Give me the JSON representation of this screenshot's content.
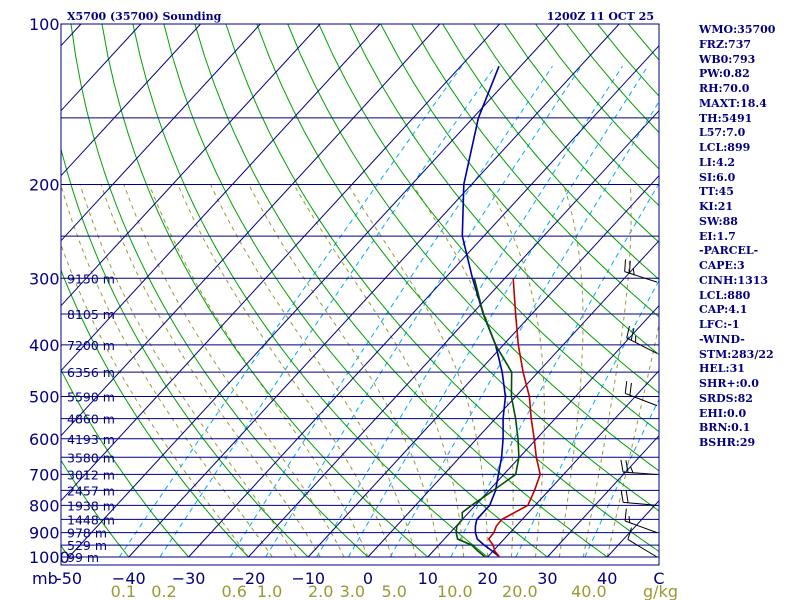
{
  "chart_data": {
    "type": "line",
    "chart_kind": "Skew-T log-P sounding",
    "title": "X5700 (35700) Sounding",
    "datetime": "1200Z 11 OCT 25",
    "pressure_unit_label": "mb",
    "mixing_ratio_unit_label": "g/kg",
    "pressure_axis": {
      "range": [
        1000,
        100
      ],
      "ticks": [
        100,
        200,
        300,
        400,
        500,
        600,
        700,
        800,
        900,
        1000
      ]
    },
    "temperature_axis": {
      "range": [
        -50,
        50
      ],
      "ticks": [
        -50,
        -40,
        -30,
        -20,
        -10,
        0,
        10,
        20,
        30,
        40,
        "C"
      ],
      "tick_labels": [
        "-50",
        "−40",
        "−30",
        "−20",
        "−10",
        "0",
        "10",
        "20",
        "30",
        "40",
        "C"
      ]
    },
    "mixing_ratio_labels": [
      "0.1",
      "0.2",
      "0.6",
      "1.0",
      "2.0",
      "3.0",
      "5.0",
      "10.0",
      "20.0",
      "40.0"
    ],
    "heights": [
      {
        "label": "9150 m",
        "p": 300
      },
      {
        "label": "8105 m",
        "p": 350
      },
      {
        "label": "7200 m",
        "p": 400
      },
      {
        "label": "6356 m",
        "p": 450
      },
      {
        "label": "5590 m",
        "p": 500
      },
      {
        "label": "4860 m",
        "p": 550
      },
      {
        "label": "4193 m",
        "p": 600
      },
      {
        "label": "3580 m",
        "p": 650
      },
      {
        "label": "3012 m",
        "p": 700
      },
      {
        "label": "2457 m",
        "p": 750
      },
      {
        "label": "1938 m",
        "p": 800
      },
      {
        "label": "1448 m",
        "p": 850
      },
      {
        "label": "978 m",
        "p": 900
      },
      {
        "label": "529 m",
        "p": 950
      },
      {
        "label": "99 m",
        "p": 1000
      }
    ],
    "series": [
      {
        "name": "temperature",
        "color": "#c00000",
        "points": [
          [
            1000,
            22
          ],
          [
            975,
            20.3
          ],
          [
            950,
            19.1
          ],
          [
            925,
            17.4
          ],
          [
            900,
            17.3
          ],
          [
            875,
            16.7
          ],
          [
            850,
            16.6
          ],
          [
            800,
            18.8
          ],
          [
            750,
            17.6
          ],
          [
            700,
            16.1
          ],
          [
            650,
            12.8
          ],
          [
            600,
            9.6
          ],
          [
            550,
            6.0
          ],
          [
            500,
            2.3
          ],
          [
            450,
            -2.5
          ],
          [
            400,
            -7.5
          ],
          [
            350,
            -12.7
          ],
          [
            300,
            -18.6
          ]
        ]
      },
      {
        "name": "dewpoint",
        "color": "#005000",
        "points": [
          [
            1000,
            19.6
          ],
          [
            975,
            17.5
          ],
          [
            950,
            15.5
          ],
          [
            925,
            12.2
          ],
          [
            900,
            11.0
          ],
          [
            875,
            10.1
          ],
          [
            850,
            10.0
          ],
          [
            825,
            8.9
          ],
          [
            800,
            9.4
          ],
          [
            750,
            10.7
          ],
          [
            700,
            12.0
          ],
          [
            650,
            9.9
          ],
          [
            600,
            6.9
          ],
          [
            550,
            3.4
          ],
          [
            500,
            -0.7
          ],
          [
            450,
            -4.4
          ],
          [
            400,
            -11.3
          ],
          [
            350,
            -18.1
          ],
          [
            300,
            -25.1
          ]
        ]
      },
      {
        "name": "parcel",
        "color": "#0000a0",
        "points": [
          [
            1000,
            22
          ],
          [
            975,
            19.9
          ],
          [
            950,
            17.6
          ],
          [
            925,
            15.5
          ],
          [
            900,
            14.2
          ],
          [
            875,
            13.2
          ],
          [
            850,
            12.4
          ],
          [
            800,
            12.4
          ],
          [
            750,
            11.1
          ],
          [
            700,
            9.1
          ],
          [
            650,
            7.0
          ],
          [
            600,
            4.4
          ],
          [
            550,
            1.3
          ],
          [
            500,
            -1.7
          ],
          [
            450,
            -6.0
          ],
          [
            400,
            -11.3
          ],
          [
            350,
            -18.1
          ],
          [
            300,
            -25.4
          ],
          [
            250,
            -33.6
          ],
          [
            200,
            -41.3
          ],
          [
            150,
            -49.1
          ],
          [
            120,
            -53.6
          ]
        ]
      }
    ],
    "wind_barbs": [
      {
        "p": 305,
        "dir": 288,
        "spd": 25
      },
      {
        "p": 415,
        "dir": 297,
        "spd": 25
      },
      {
        "p": 520,
        "dir": 291,
        "spd": 20
      },
      {
        "p": 700,
        "dir": 274,
        "spd": 25
      },
      {
        "p": 800,
        "dir": 275,
        "spd": 20
      },
      {
        "p": 900,
        "dir": 290,
        "spd": 15
      },
      {
        "p": 1000,
        "dir": 301,
        "spd": 10
      }
    ],
    "indices": [
      "WMO:35700",
      "FRZ:737",
      "WB0:793",
      "PW:0.82",
      "RH:70.0",
      "MAXT:18.4",
      "TH:5491",
      "L57:7.0",
      "LCL:899",
      "LI:4.2",
      "SI:6.0",
      "TT:45",
      "KI:21",
      "SW:88",
      "EI:1.7",
      "-PARCEL-",
      "CAPE:3",
      "CINH:1313",
      "LCL:880",
      "CAP:4.1",
      "LFC:-1",
      "-WIND-",
      "STM:283/22",
      "HEL:31",
      "SHR+:0.0",
      "SRDS:82",
      "EHI:0.0",
      "BRN:0.1",
      "BSHR:29"
    ]
  },
  "colors": {
    "frame": "#000080",
    "isobar": "#000080",
    "isotherm": "#000080",
    "dry_adiabat": "#00a000",
    "moist_adiabat": "#999933",
    "mixing_ratio": "#00aaff"
  }
}
